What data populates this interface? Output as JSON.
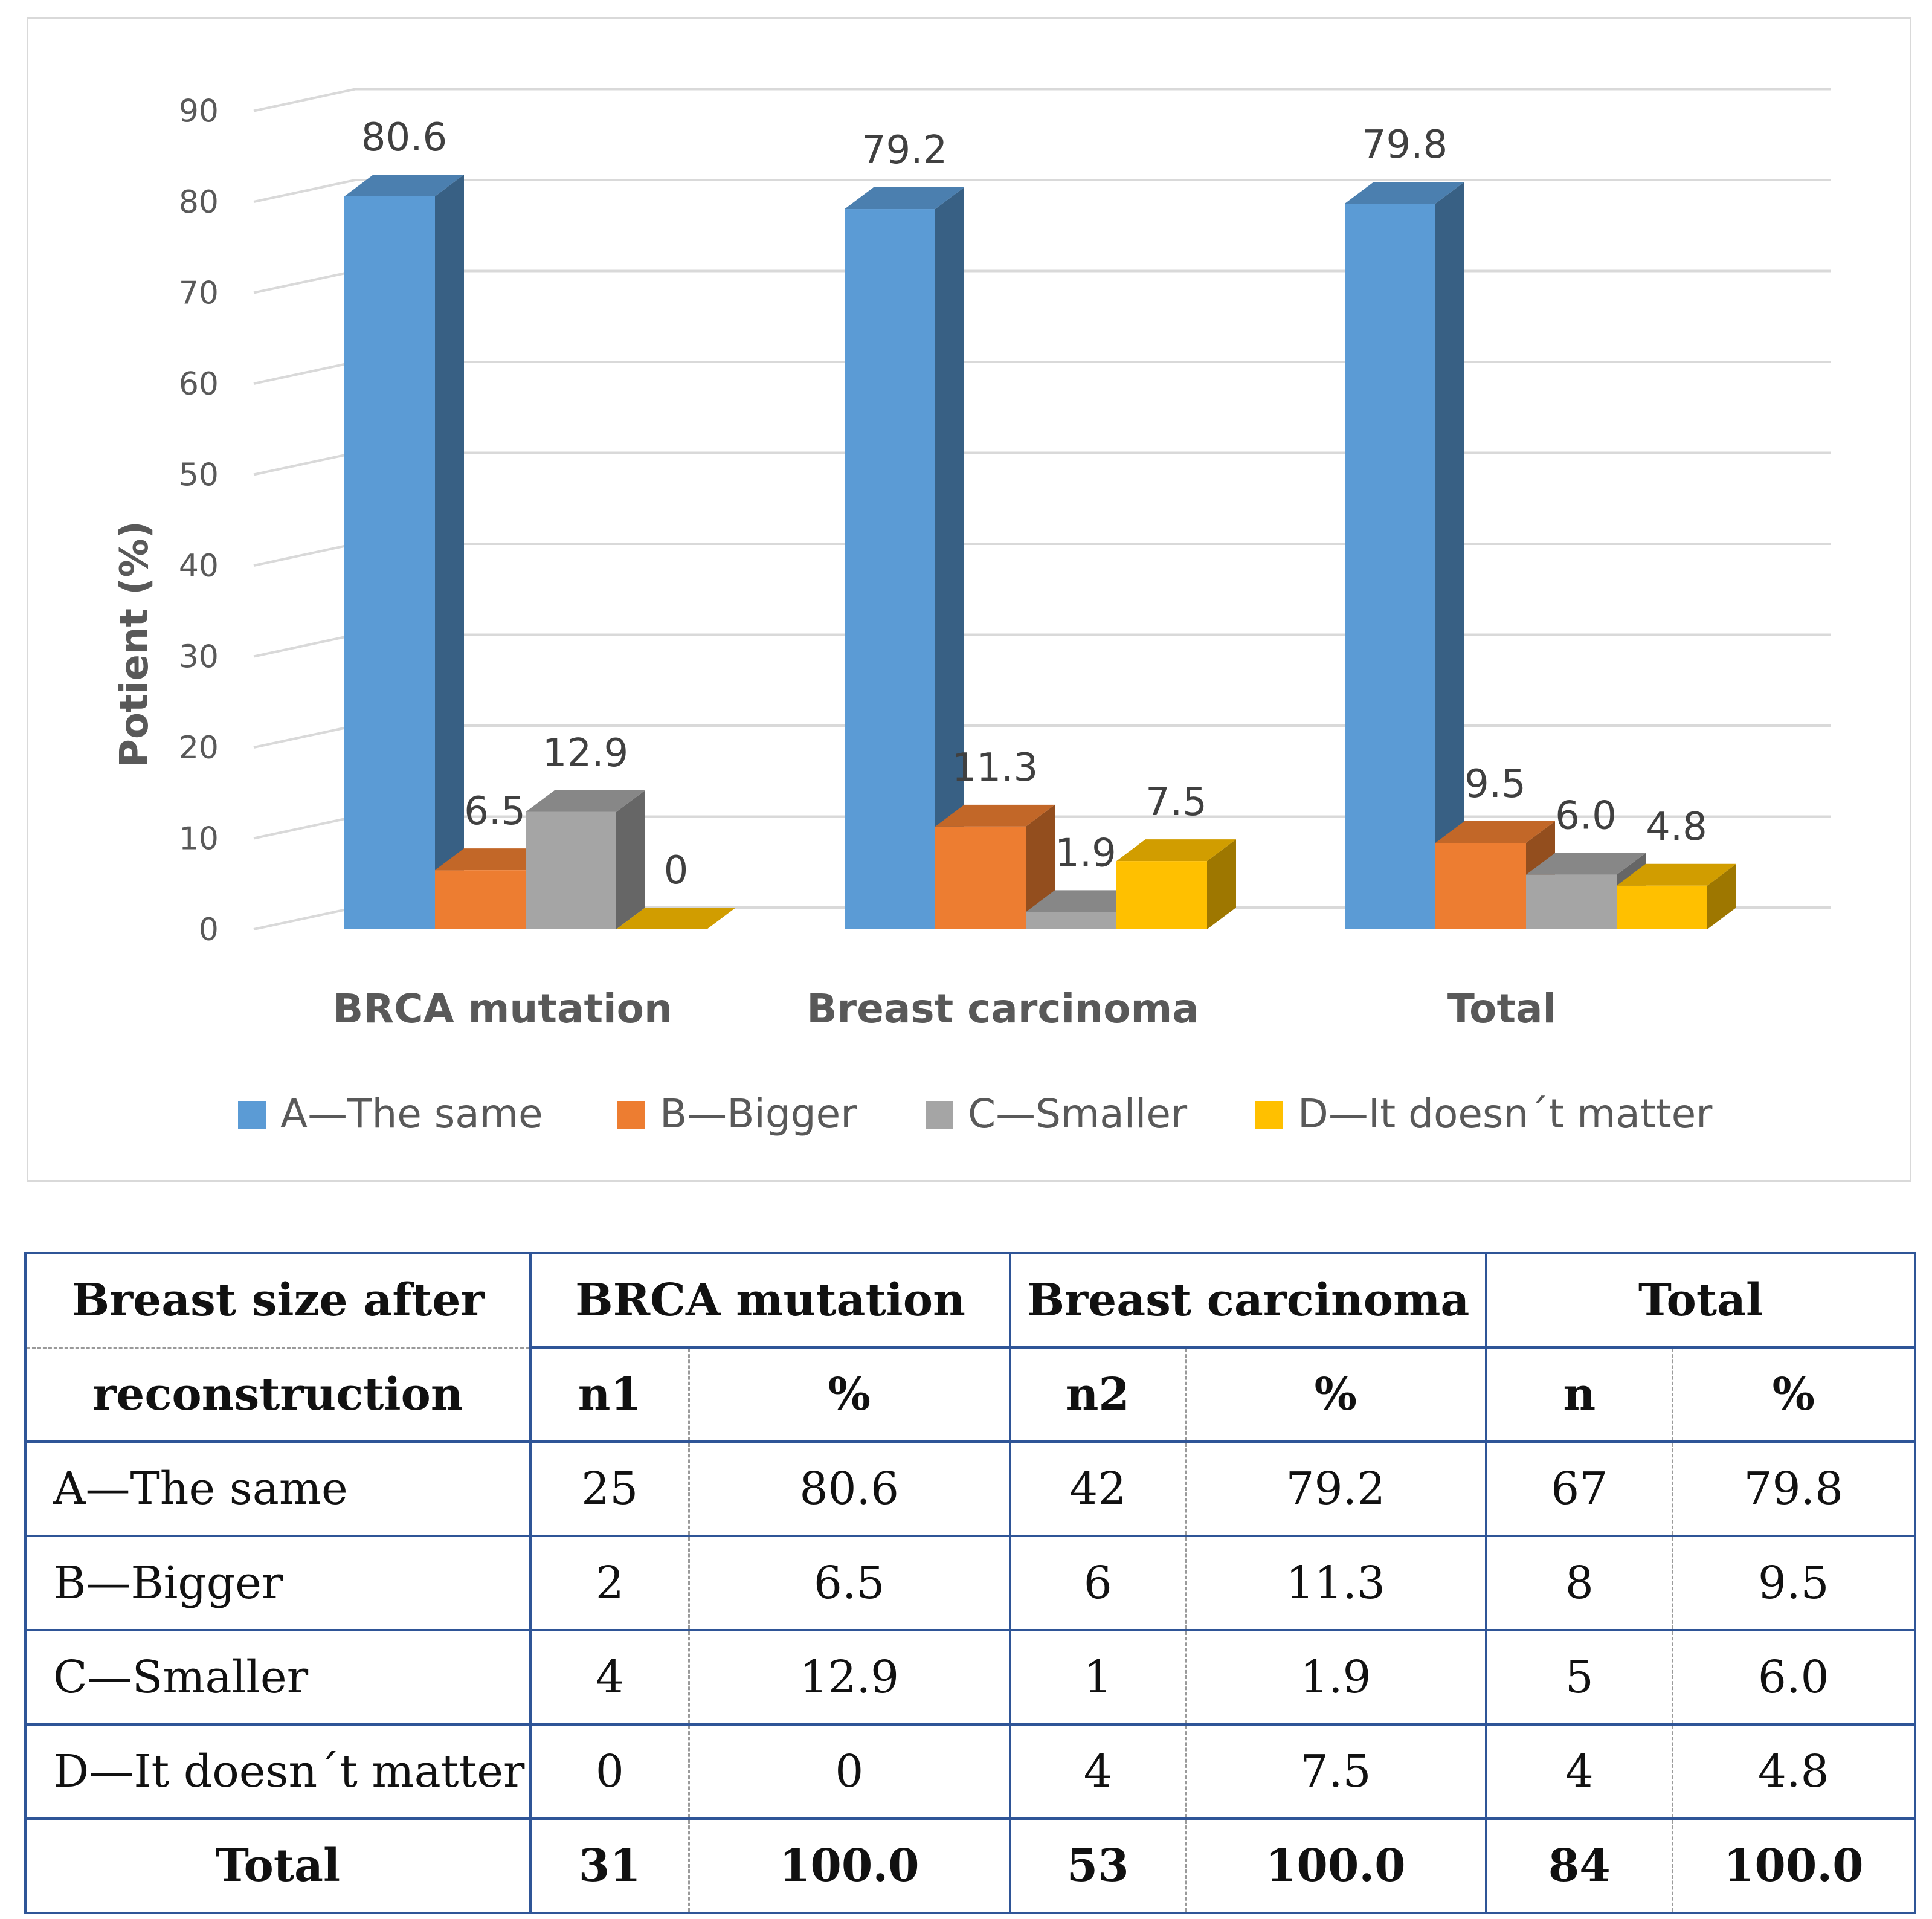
{
  "chart_data": {
    "type": "bar",
    "style": "3d-clustered-column",
    "title": "",
    "xlabel": "",
    "ylabel": "Potient (%)",
    "ylim": [
      0,
      90
    ],
    "yticks": [
      0,
      10,
      20,
      30,
      40,
      50,
      60,
      70,
      80,
      90
    ],
    "grid": true,
    "legend_position": "bottom",
    "categories": [
      "BRCA mutation",
      "Breast carcinoma",
      "Total"
    ],
    "series": [
      {
        "name": "A—The same",
        "color": "#5b9bd5",
        "values": [
          80.6,
          79.2,
          79.8
        ],
        "labels": [
          "80.6",
          "79.2",
          "79.8"
        ]
      },
      {
        "name": "B—Bigger",
        "color": "#ed7d31",
        "values": [
          6.5,
          11.3,
          9.5
        ],
        "labels": [
          "6.5",
          "11.3",
          "9.5"
        ]
      },
      {
        "name": "C—Smaller",
        "color": "#a5a5a5",
        "values": [
          12.9,
          1.9,
          6.0
        ],
        "labels": [
          "12.9",
          "1.9",
          "6.0"
        ]
      },
      {
        "name": "D—It doesn´t matter",
        "color": "#ffc000",
        "values": [
          0,
          7.5,
          4.8
        ],
        "labels": [
          "0",
          "7.5",
          "4.8"
        ]
      }
    ]
  },
  "table": {
    "header": {
      "row_label_top": "Breast size after",
      "row_label_bottom": "reconstruction",
      "group1": "BRCA mutation",
      "group2": "Breast carcinoma",
      "group3": "Total",
      "n1": "n1",
      "pct1": "%",
      "n2": "n2",
      "pct2": "%",
      "n3": "n",
      "pct3": "%"
    },
    "rows": [
      {
        "label": "A—The same",
        "n1": "25",
        "p1": "80.6",
        "n2": "42",
        "p2": "79.2",
        "n3": "67",
        "p3": "79.8"
      },
      {
        "label": "B—Bigger",
        "n1": "2",
        "p1": "6.5",
        "n2": "6",
        "p2": "11.3",
        "n3": "8",
        "p3": "9.5"
      },
      {
        "label": "C—Smaller",
        "n1": "4",
        "p1": "12.9",
        "n2": "1",
        "p2": "1.9",
        "n3": "5",
        "p3": "6.0"
      },
      {
        "label": "D—It doesn´t matter",
        "n1": "0",
        "p1": "0",
        "n2": "4",
        "p2": "7.5",
        "n3": "4",
        "p3": "4.8"
      }
    ],
    "total": {
      "label": "Total",
      "n1": "31",
      "p1": "100.0",
      "n2": "53",
      "p2": "100.0",
      "n3": "84",
      "p3": "100.0"
    }
  }
}
